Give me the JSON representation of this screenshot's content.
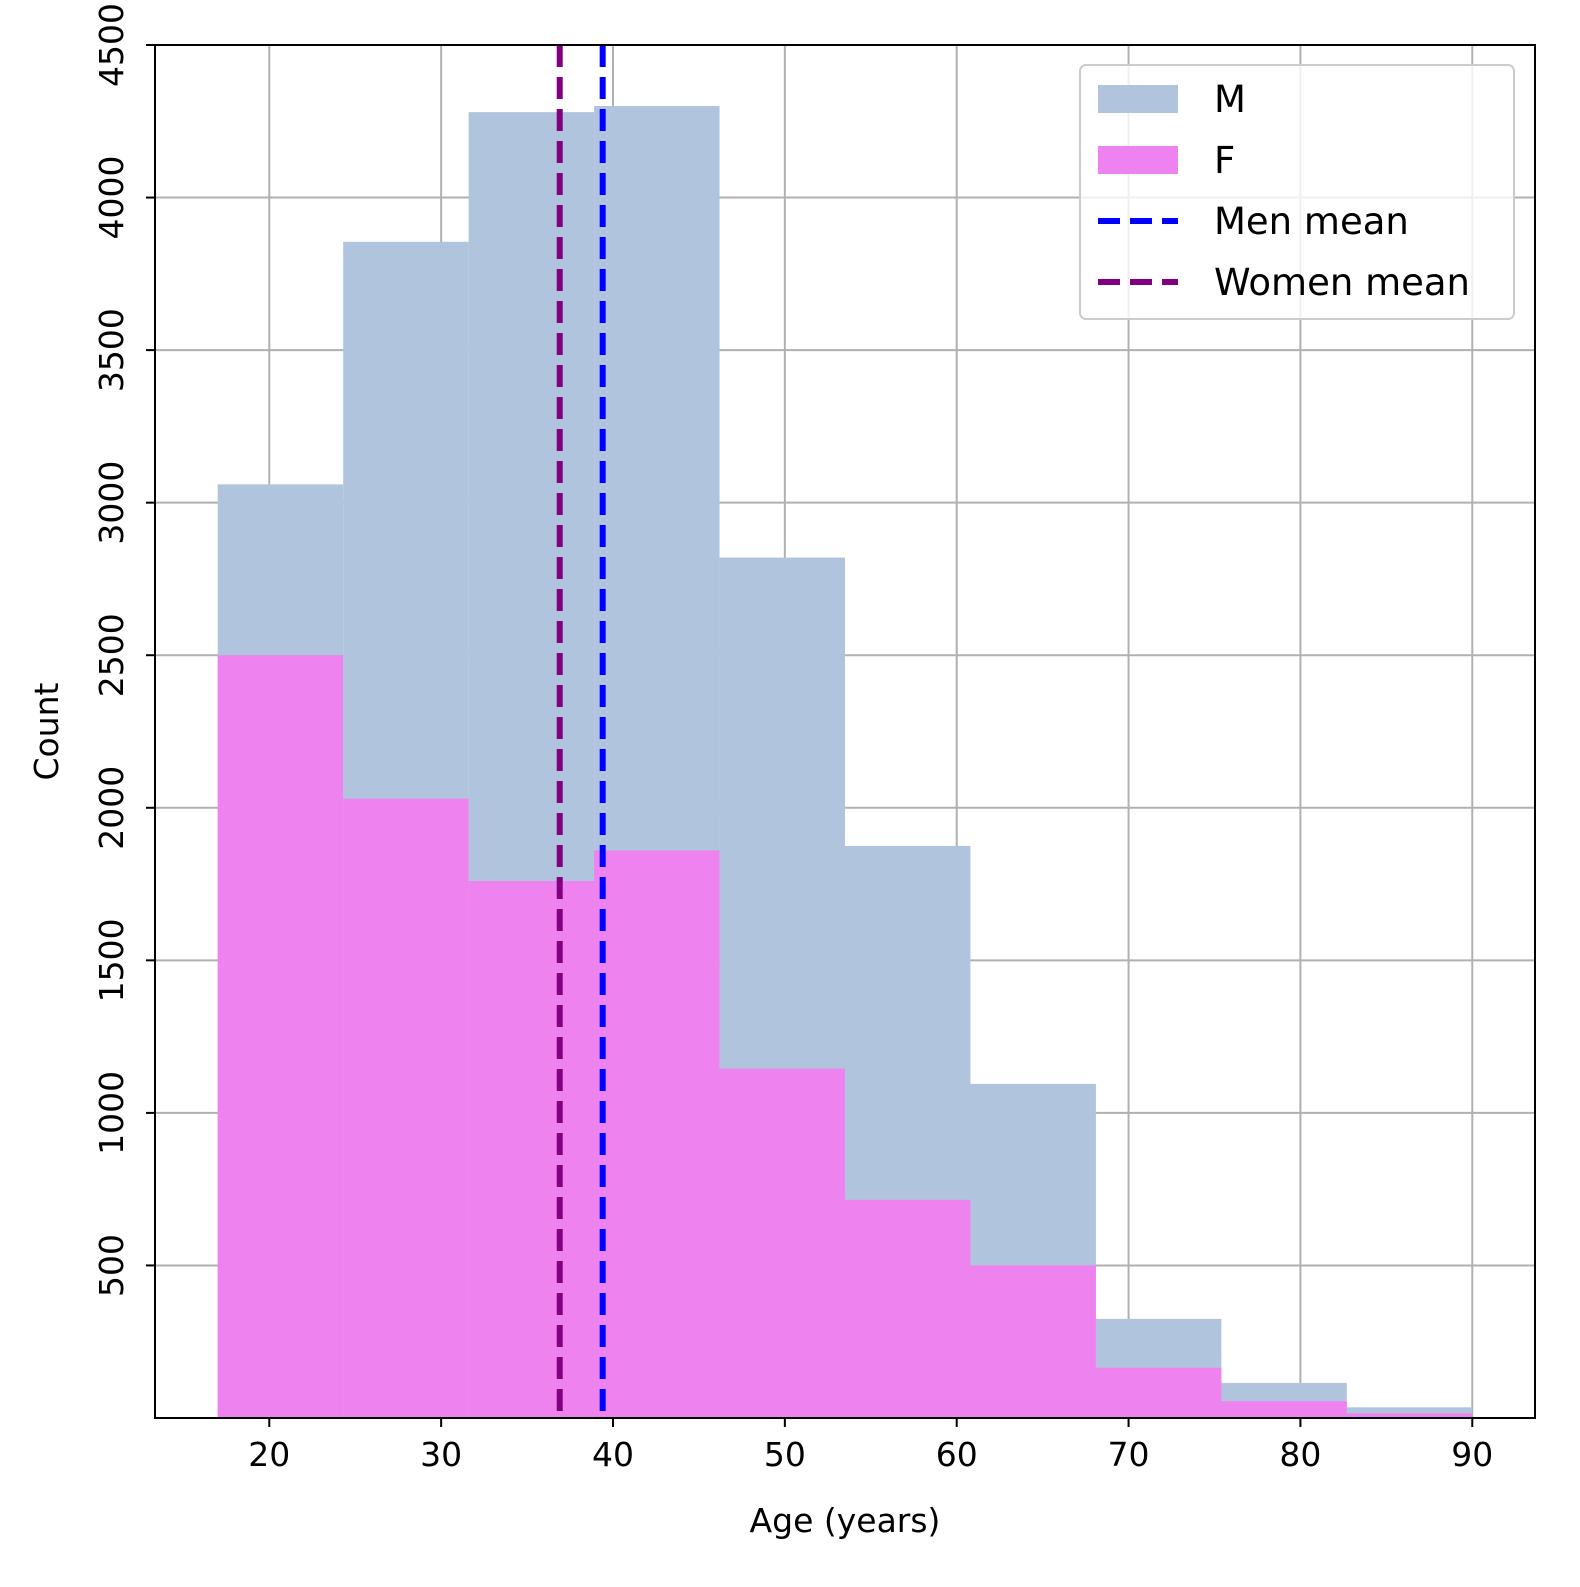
{
  "chart_data": {
    "type": "bar",
    "subtype": "overlaid-histogram",
    "title": "",
    "xlabel": "Age (years)",
    "ylabel": "Count",
    "xlim": [
      13.35,
      93.65
    ],
    "ylim": [
      0,
      4500
    ],
    "x_ticks": [
      20,
      30,
      40,
      50,
      60,
      70,
      80,
      90
    ],
    "y_ticks": [
      500,
      1000,
      1500,
      2000,
      2500,
      3000,
      3500,
      4000,
      4500
    ],
    "y_tick_rotation": "vertical",
    "grid": true,
    "legend_position": "top-right",
    "bin_edges": [
      17,
      24.3,
      31.6,
      38.9,
      46.2,
      53.5,
      60.8,
      68.1,
      75.4,
      82.7,
      90
    ],
    "series": [
      {
        "name": "M",
        "color": "#b0c4de",
        "values": [
          3060,
          3855,
          4280,
          4300,
          2820,
          1875,
          1095,
          325,
          115,
          35
        ]
      },
      {
        "name": "F",
        "color": "#ee82ee",
        "values": [
          2500,
          2030,
          1760,
          1860,
          1145,
          715,
          500,
          165,
          55,
          15
        ]
      }
    ],
    "vlines": [
      {
        "name": "Men mean",
        "x": 39.4,
        "color": "#0000ff",
        "style": "dashed"
      },
      {
        "name": "Women mean",
        "x": 36.9,
        "color": "#800080",
        "style": "dashed"
      }
    ]
  }
}
